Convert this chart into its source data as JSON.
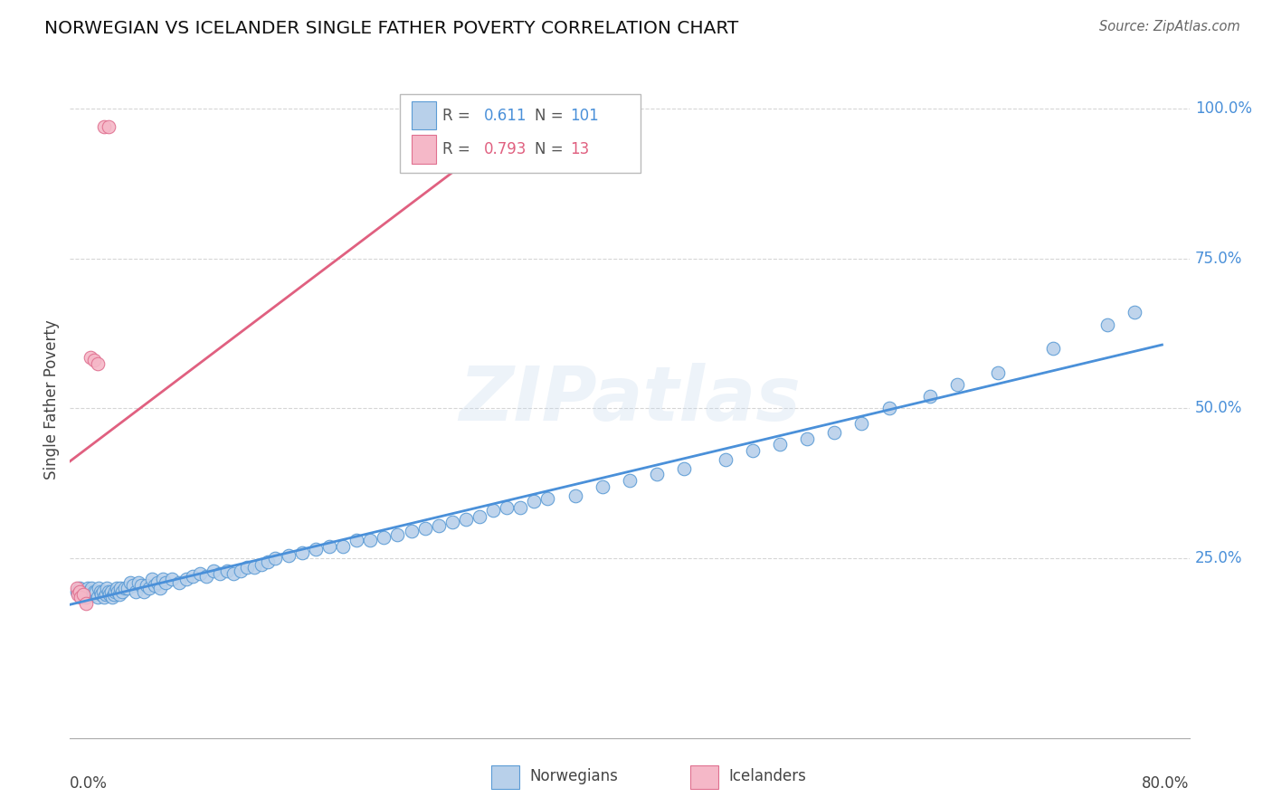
{
  "title": "NORWEGIAN VS ICELANDER SINGLE FATHER POVERTY CORRELATION CHART",
  "source": "Source: ZipAtlas.com",
  "ylabel": "Single Father Poverty",
  "legend_blue_r": "0.611",
  "legend_blue_n": "101",
  "legend_pink_r": "0.793",
  "legend_pink_n": "13",
  "blue_scatter_color": "#b8d0ea",
  "blue_edge_color": "#5b9bd5",
  "pink_scatter_color": "#f5b8c8",
  "pink_edge_color": "#e07090",
  "line_blue_color": "#4a90d9",
  "line_pink_color": "#e06080",
  "watermark": "ZIPatlas",
  "grid_color": "#cccccc",
  "norwegians_x": [
    0.005,
    0.007,
    0.008,
    0.01,
    0.012,
    0.013,
    0.014,
    0.015,
    0.016,
    0.017,
    0.018,
    0.019,
    0.02,
    0.021,
    0.022,
    0.023,
    0.024,
    0.025,
    0.026,
    0.027,
    0.028,
    0.029,
    0.03,
    0.031,
    0.032,
    0.033,
    0.034,
    0.035,
    0.036,
    0.037,
    0.038,
    0.04,
    0.042,
    0.044,
    0.046,
    0.048,
    0.05,
    0.052,
    0.054,
    0.056,
    0.058,
    0.06,
    0.062,
    0.064,
    0.066,
    0.068,
    0.07,
    0.075,
    0.08,
    0.085,
    0.09,
    0.095,
    0.1,
    0.105,
    0.11,
    0.115,
    0.12,
    0.125,
    0.13,
    0.135,
    0.14,
    0.145,
    0.15,
    0.16,
    0.17,
    0.18,
    0.19,
    0.2,
    0.21,
    0.22,
    0.23,
    0.24,
    0.25,
    0.26,
    0.27,
    0.28,
    0.29,
    0.3,
    0.31,
    0.32,
    0.33,
    0.34,
    0.35,
    0.37,
    0.39,
    0.41,
    0.43,
    0.45,
    0.48,
    0.5,
    0.52,
    0.54,
    0.56,
    0.58,
    0.6,
    0.63,
    0.65,
    0.68,
    0.72,
    0.76,
    0.78
  ],
  "norwegians_y": [
    0.195,
    0.2,
    0.195,
    0.19,
    0.185,
    0.2,
    0.195,
    0.195,
    0.2,
    0.19,
    0.195,
    0.195,
    0.185,
    0.2,
    0.195,
    0.19,
    0.195,
    0.185,
    0.19,
    0.2,
    0.195,
    0.19,
    0.195,
    0.185,
    0.19,
    0.195,
    0.2,
    0.195,
    0.19,
    0.2,
    0.195,
    0.2,
    0.2,
    0.21,
    0.205,
    0.195,
    0.21,
    0.205,
    0.195,
    0.205,
    0.2,
    0.215,
    0.205,
    0.21,
    0.2,
    0.215,
    0.21,
    0.215,
    0.21,
    0.215,
    0.22,
    0.225,
    0.22,
    0.23,
    0.225,
    0.23,
    0.225,
    0.23,
    0.235,
    0.235,
    0.24,
    0.245,
    0.25,
    0.255,
    0.26,
    0.265,
    0.27,
    0.27,
    0.28,
    0.28,
    0.285,
    0.29,
    0.295,
    0.3,
    0.305,
    0.31,
    0.315,
    0.32,
    0.33,
    0.335,
    0.335,
    0.345,
    0.35,
    0.355,
    0.37,
    0.38,
    0.39,
    0.4,
    0.415,
    0.43,
    0.44,
    0.45,
    0.46,
    0.475,
    0.5,
    0.52,
    0.54,
    0.56,
    0.6,
    0.64,
    0.66
  ],
  "icelanders_x": [
    0.005,
    0.006,
    0.007,
    0.008,
    0.01,
    0.012,
    0.015,
    0.018,
    0.02,
    0.025,
    0.028,
    0.26,
    0.4
  ],
  "icelanders_y": [
    0.2,
    0.19,
    0.195,
    0.185,
    0.19,
    0.175,
    0.585,
    0.58,
    0.575,
    0.97,
    0.97,
    0.97,
    0.97
  ],
  "xlim": [
    0.0,
    0.82
  ],
  "ylim": [
    -0.05,
    1.08
  ],
  "ytick_positions": [
    0.0,
    0.25,
    0.5,
    0.75,
    1.0
  ],
  "ytick_labels_right": [
    "",
    "25.0%",
    "50.0%",
    "75.0%",
    "100.0%"
  ]
}
